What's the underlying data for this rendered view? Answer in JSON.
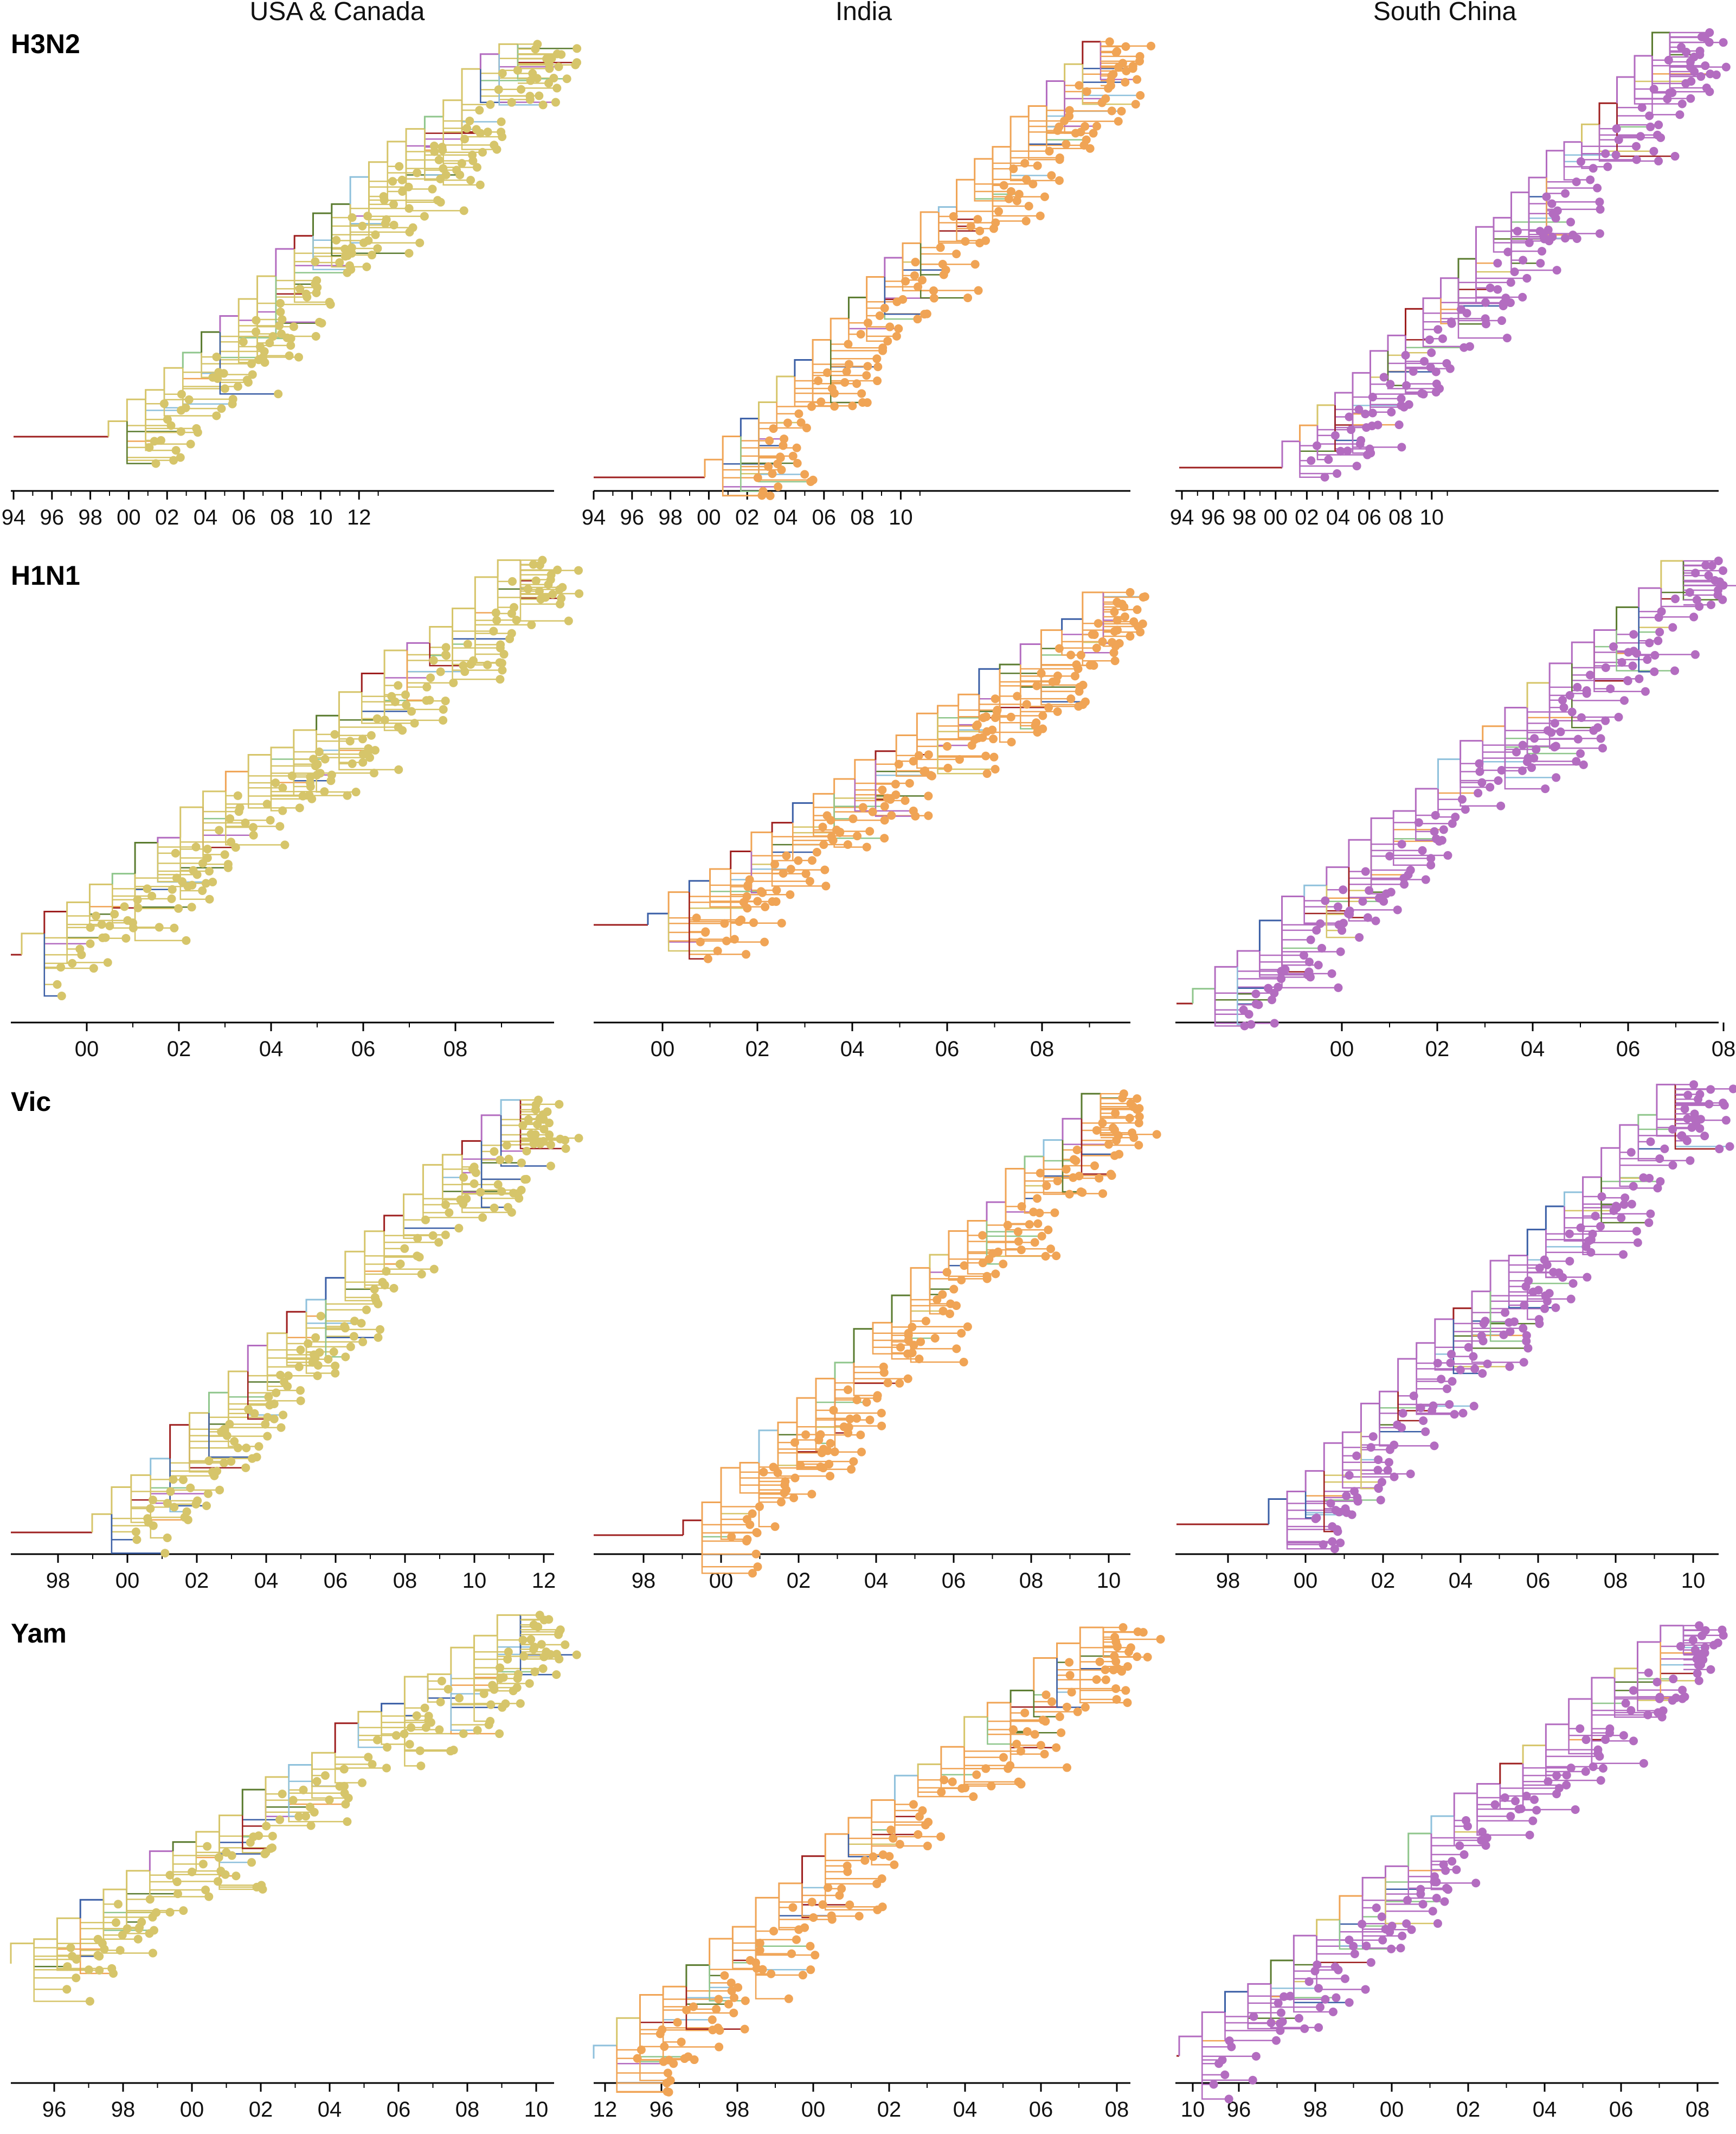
{
  "columns": [
    "USA & Canada",
    "India",
    "South China"
  ],
  "rows": [
    "H3N2",
    "H1N1",
    "Vic",
    "Yam"
  ],
  "region_colors": {
    "USA & Canada": "#d6c56a",
    "India": "#f0a455",
    "South China": "#b36cc0"
  },
  "branch_palette": [
    "#d6c56a",
    "#f0a455",
    "#b36cc0",
    "#8fc1dc",
    "#3b5fa6",
    "#8fc68c",
    "#5a7b2f",
    "#9e1f1f"
  ],
  "panels": [
    {
      "id": "H3N2-USA",
      "row": "H3N2",
      "column": "USA & Canada",
      "ticks": [
        "94",
        "96",
        "98",
        "00",
        "02",
        "04",
        "06",
        "08",
        "10",
        "12"
      ]
    },
    {
      "id": "H3N2-India",
      "row": "H3N2",
      "column": "India",
      "ticks": [
        "94",
        "96",
        "98",
        "00",
        "02",
        "04",
        "06",
        "08",
        "10"
      ]
    },
    {
      "id": "H3N2-SChina",
      "row": "H3N2",
      "column": "South China",
      "ticks": [
        "94",
        "96",
        "98",
        "00",
        "02",
        "04",
        "06",
        "08",
        "10"
      ]
    },
    {
      "id": "H1N1-USA",
      "row": "H1N1",
      "column": "USA & Canada",
      "ticks": [
        "00",
        "02",
        "04",
        "06",
        "08"
      ]
    },
    {
      "id": "H1N1-India",
      "row": "H1N1",
      "column": "India",
      "ticks": [
        "00",
        "02",
        "04",
        "06",
        "08"
      ]
    },
    {
      "id": "H1N1-SChina",
      "row": "H1N1",
      "column": "South China",
      "ticks": [
        "00",
        "02",
        "04",
        "06",
        "08"
      ]
    },
    {
      "id": "Vic-USA",
      "row": "Vic",
      "column": "USA & Canada",
      "ticks": [
        "98",
        "00",
        "02",
        "04",
        "06",
        "08",
        "10",
        "12"
      ]
    },
    {
      "id": "Vic-India",
      "row": "Vic",
      "column": "India",
      "ticks": [
        "98",
        "00",
        "02",
        "04",
        "06",
        "08",
        "10"
      ]
    },
    {
      "id": "Vic-SChina",
      "row": "Vic",
      "column": "South China",
      "ticks": [
        "98",
        "00",
        "02",
        "04",
        "06",
        "08",
        "10"
      ]
    },
    {
      "id": "Yam-USA",
      "row": "Yam",
      "column": "USA & Canada",
      "ticks": [
        "96",
        "98",
        "00",
        "02",
        "04",
        "06",
        "08",
        "10",
        "12"
      ]
    },
    {
      "id": "Yam-India",
      "row": "Yam",
      "column": "India",
      "ticks": [
        "96",
        "98",
        "00",
        "02",
        "04",
        "06",
        "08",
        "10"
      ]
    },
    {
      "id": "Yam-SChina",
      "row": "Yam",
      "column": "South China",
      "ticks": [
        "96",
        "98",
        "00",
        "02",
        "04",
        "06",
        "08",
        "10"
      ]
    }
  ]
}
